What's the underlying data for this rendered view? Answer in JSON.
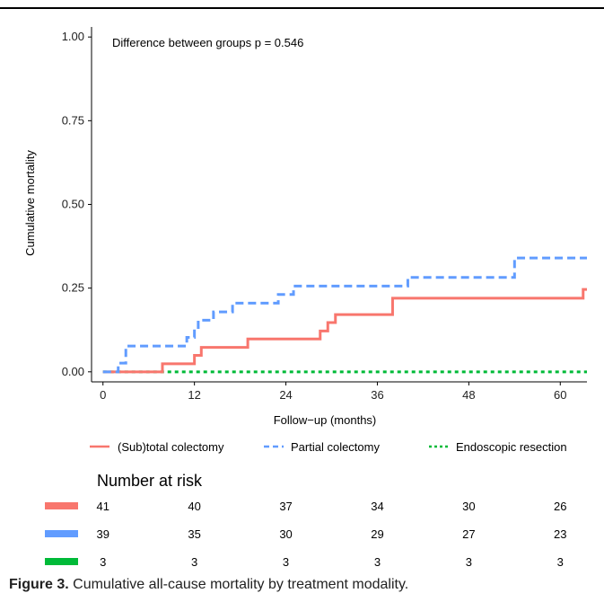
{
  "chart_data": {
    "type": "line",
    "step": true,
    "annotation": "Difference between groups p = 0.546",
    "xlabel": "Follow−up (months)",
    "ylabel": "Cumulative mortality",
    "xlim": [
      -1.5,
      63.5
    ],
    "ylim": [
      -0.03,
      1.03
    ],
    "x_ticks": [
      0,
      12,
      24,
      36,
      48,
      60
    ],
    "x_tick_labels": [
      "0",
      "12",
      "24",
      "36",
      "48",
      "60"
    ],
    "y_ticks": [
      0,
      0.25,
      0.5,
      0.75,
      1.0
    ],
    "y_tick_labels": [
      "0.00",
      "0.25",
      "0.50",
      "0.75",
      "1.00"
    ],
    "grid": false,
    "legend_position": "bottom",
    "series": [
      {
        "name": "(Sub)total colectomy",
        "color": "#F8766D",
        "dash": "solid",
        "x": [
          0,
          7.8,
          12,
          12.9,
          19,
          28.5,
          29.5,
          30.5,
          38,
          63,
          64
        ],
        "y": [
          0,
          0.024,
          0.049,
          0.073,
          0.098,
          0.122,
          0.147,
          0.171,
          0.22,
          0.246,
          0.246
        ]
      },
      {
        "name": "Partial colectomy",
        "color": "#619CFF",
        "dash": "dashed",
        "x": [
          0,
          2,
          3,
          11,
          12,
          12.5,
          14.5,
          17,
          20,
          23,
          25,
          40,
          54,
          64
        ],
        "y": [
          0,
          0.026,
          0.077,
          0.103,
          0.128,
          0.154,
          0.179,
          0.205,
          0.205,
          0.231,
          0.256,
          0.282,
          0.34,
          0.34
        ]
      },
      {
        "name": "Endoscopic resection",
        "color": "#00BA38",
        "dash": "dotted",
        "x": [
          0,
          64
        ],
        "y": [
          0,
          0
        ]
      }
    ],
    "risk_table": {
      "title": "Number at risk",
      "timepoints": [
        0,
        12,
        24,
        36,
        48,
        60
      ],
      "rows": [
        {
          "color": "#F8766D",
          "values": [
            "41",
            "40",
            "37",
            "34",
            "30",
            "26"
          ]
        },
        {
          "color": "#619CFF",
          "values": [
            "39",
            "35",
            "30",
            "29",
            "27",
            "23"
          ]
        },
        {
          "color": "#00BA38",
          "values": [
            "3",
            "3",
            "3",
            "3",
            "3",
            "3"
          ]
        }
      ]
    }
  },
  "caption": {
    "label": "Figure 3.",
    "text": " Cumulative all-cause mortality by treatment modality."
  }
}
